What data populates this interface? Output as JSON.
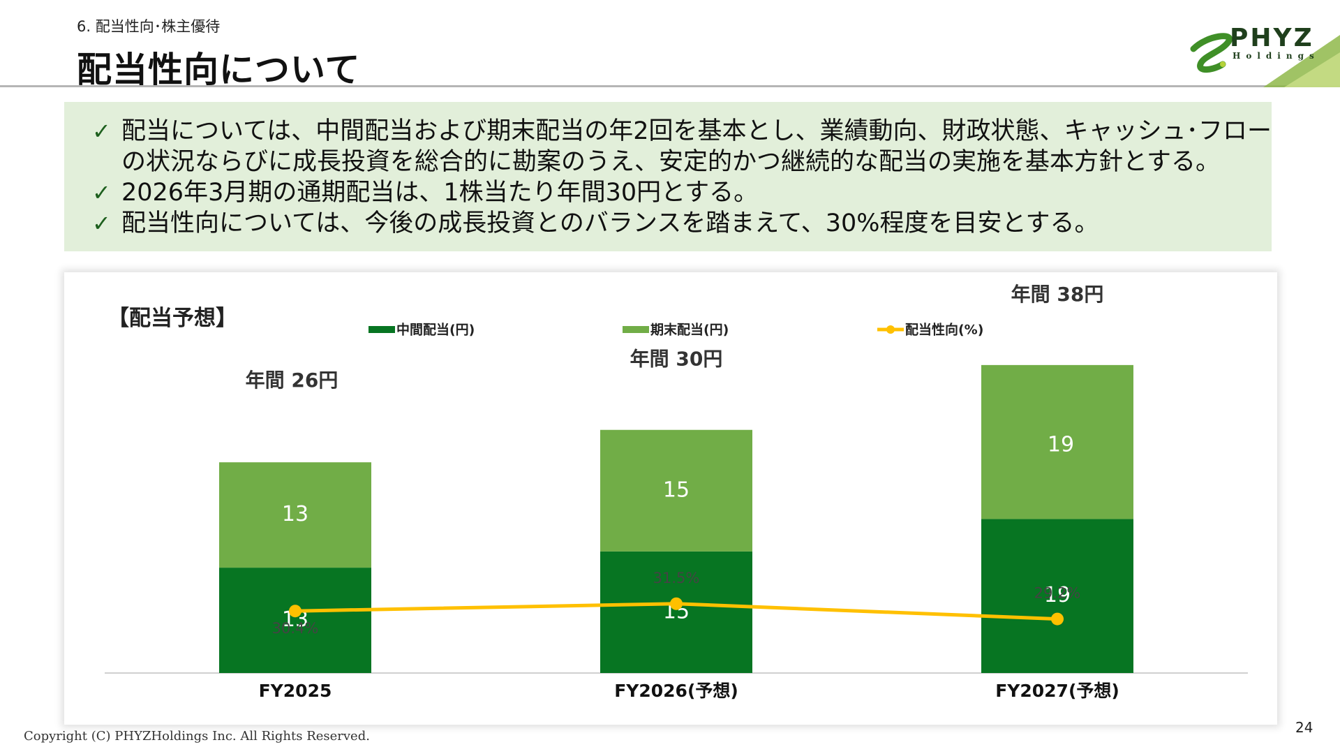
{
  "header": {
    "section": "6. 配当性向･株主優待",
    "title": "配当性向について"
  },
  "logo": {
    "word": "PHYZ",
    "sub": "Holdings"
  },
  "summary": {
    "check_icon": "checkmark-icon",
    "bullets": [
      "配当については、中間配当および期末配当の年2回を基本とし、業績動向、財政状態、キャッシュ･フロー",
      "の状況ならびに成長投資を総合的に勘案のうえ、安定的かつ継続的な配当の実施を基本方針とする。",
      "2026年3月期の通期配当は、1株当たり年間30円とする。",
      "配当性向については、今後の成長投資とのバランスを踏まえて、30%程度を目安とする。"
    ]
  },
  "colors": {
    "interim": "#077522",
    "final": "#71ad47",
    "payout": "#ffc000",
    "summary_bg": "#e2efda"
  },
  "chart_data": {
    "type": "bar",
    "title": "【配当予想】",
    "categories": [
      "FY2025",
      "FY2026(予想)",
      "FY2027(予想)"
    ],
    "series": [
      {
        "name": "中間配当(円)",
        "type": "bar",
        "stacked": true,
        "values": [
          13,
          15,
          19
        ]
      },
      {
        "name": "期末配当(円)",
        "type": "bar",
        "stacked": true,
        "values": [
          13,
          15,
          19
        ]
      },
      {
        "name": "配当性向(%)",
        "type": "line",
        "values": [
          30.4,
          31.5,
          29.2
        ]
      }
    ],
    "totals_labels": [
      "年間 26円",
      "年間 30円",
      "年間 38円"
    ],
    "payout_labels": [
      "30.4%",
      "31.5%",
      "29.2%"
    ],
    "legend_position": "top",
    "ylim": [
      0,
      46
    ],
    "grid": false
  },
  "footer": {
    "copyright": "Copyright (C) PHYZHoldings Inc. All Rights Reserved.",
    "page": "24"
  }
}
